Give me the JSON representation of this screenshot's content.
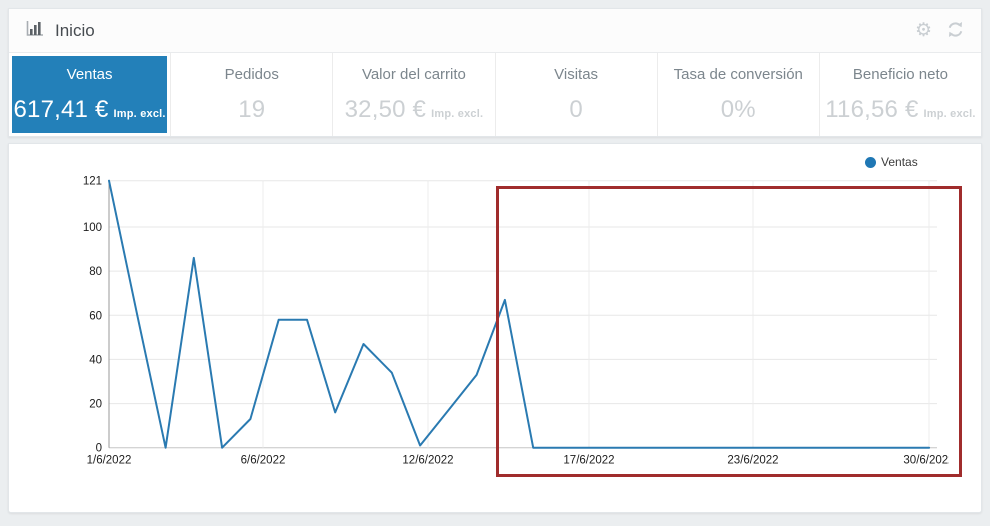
{
  "header": {
    "title": "Inicio"
  },
  "kpi_tiles": [
    {
      "label": "Ventas",
      "value": "617,41 €",
      "suffix": "Imp. excl.",
      "selected": true
    },
    {
      "label": "Pedidos",
      "value": "19",
      "suffix": "",
      "selected": false
    },
    {
      "label": "Valor del carrito",
      "value": "32,50 €",
      "suffix": "Imp. excl.",
      "selected": false
    },
    {
      "label": "Visitas",
      "value": "0",
      "suffix": "",
      "selected": false
    },
    {
      "label": "Tasa de conversión",
      "value": "0%",
      "suffix": "",
      "selected": false
    },
    {
      "label": "Beneficio neto",
      "value": "116,56 €",
      "suffix": "Imp. excl.",
      "selected": false
    }
  ],
  "chart_data": {
    "type": "line",
    "series": [
      {
        "name": "Ventas",
        "x": [
          "1/6/2022",
          "2/6/2022",
          "3/6/2022",
          "4/6/2022",
          "5/6/2022",
          "6/6/2022",
          "7/6/2022",
          "8/6/2022",
          "9/6/2022",
          "10/6/2022",
          "11/6/2022",
          "12/6/2022",
          "13/6/2022",
          "14/6/2022",
          "15/6/2022",
          "16/6/2022",
          "17/6/2022",
          "18/6/2022",
          "19/6/2022",
          "20/6/2022",
          "21/6/2022",
          "22/6/2022",
          "23/6/2022",
          "24/6/2022",
          "25/6/2022",
          "26/6/2022",
          "27/6/2022",
          "28/6/2022",
          "29/6/2022",
          "30/6/2022"
        ],
        "values": [
          121,
          60,
          0,
          86,
          0,
          13,
          58,
          58,
          16,
          47,
          34,
          1,
          17,
          33,
          67,
          0,
          0,
          0,
          0,
          0,
          0,
          0,
          0,
          0,
          0,
          0,
          0,
          0,
          0,
          0
        ]
      }
    ],
    "x_tick_labels": [
      "1/6/2022",
      "6/6/2022",
      "12/6/2022",
      "17/6/2022",
      "23/6/2022",
      "30/6/2022"
    ],
    "y_ticks": [
      0,
      20,
      40,
      60,
      80,
      100,
      121
    ],
    "ylim": [
      0,
      121
    ],
    "xlabel": "",
    "ylabel": "",
    "grid": true,
    "legend": {
      "label": "Ventas",
      "position": "top-right"
    }
  },
  "annotation": {
    "shape": "rectangle",
    "border_color": "#a02c2c"
  },
  "colors": {
    "selected_tile_blue": "#2380b9",
    "line_blue": "#2a7ab1",
    "legend_dot_blue": "#1f77b4",
    "annotation_red": "#a02c2c",
    "icon_gray": "#c9ced2"
  }
}
